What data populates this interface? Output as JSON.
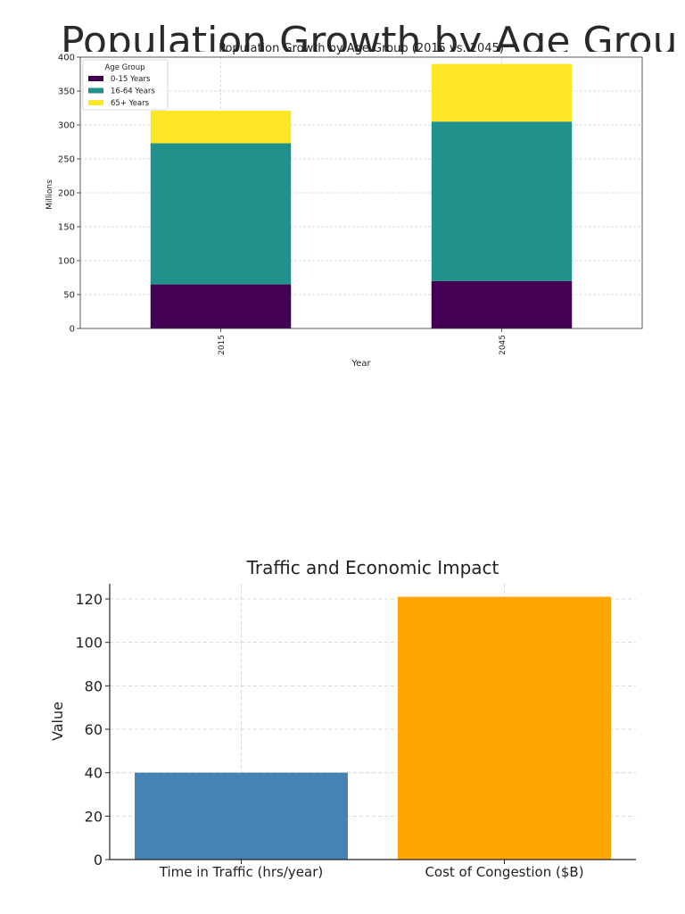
{
  "background_title": "Population Growth by Age Group",
  "chart_data": [
    {
      "type": "bar",
      "stacked": true,
      "title": "Population Growth by Age Group (2015 vs. 2045)",
      "xlabel": "Year",
      "ylabel": "Millions",
      "categories": [
        "2015",
        "2045"
      ],
      "ylim": [
        0,
        400
      ],
      "yticks": [
        0,
        50,
        100,
        150,
        200,
        250,
        300,
        350,
        400
      ],
      "grid": true,
      "legend": {
        "title": "Age Group",
        "placement": "top-left"
      },
      "series": [
        {
          "name": "0-15 Years",
          "values": [
            65,
            70
          ],
          "color": "#440154"
        },
        {
          "name": "16-64 Years",
          "values": [
            208,
            235
          ],
          "color": "#21918c"
        },
        {
          "name": "65+ Years",
          "values": [
            48,
            85
          ],
          "color": "#fde725"
        }
      ]
    },
    {
      "type": "bar",
      "title": "Traffic and Economic Impact",
      "xlabel": "",
      "ylabel": "Value",
      "categories": [
        "Time in Traffic (hrs/year)",
        "Cost of Congestion ($B)"
      ],
      "values": [
        40,
        121
      ],
      "colors": [
        "#4682b4",
        "#ffa500"
      ],
      "ylim": [
        0,
        127
      ],
      "yticks": [
        0,
        20,
        40,
        60,
        80,
        100,
        120
      ],
      "grid": true
    }
  ]
}
